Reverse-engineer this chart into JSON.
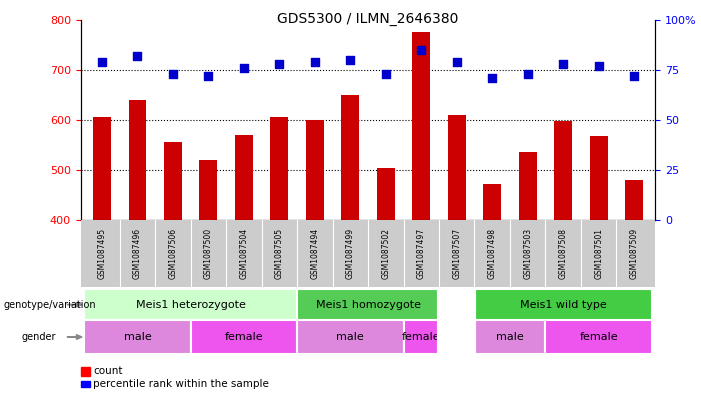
{
  "title": "GDS5300 / ILMN_2646380",
  "samples": [
    "GSM1087495",
    "GSM1087496",
    "GSM1087506",
    "GSM1087500",
    "GSM1087504",
    "GSM1087505",
    "GSM1087494",
    "GSM1087499",
    "GSM1087502",
    "GSM1087497",
    "GSM1087507",
    "GSM1087498",
    "GSM1087503",
    "GSM1087508",
    "GSM1087501",
    "GSM1087509"
  ],
  "counts": [
    605,
    640,
    555,
    520,
    570,
    605,
    600,
    650,
    503,
    775,
    610,
    472,
    535,
    597,
    568,
    480
  ],
  "percentiles": [
    79,
    82,
    73,
    72,
    76,
    78,
    79,
    80,
    73,
    85,
    79,
    71,
    73,
    78,
    77,
    72
  ],
  "ylim_left": [
    400,
    800
  ],
  "ylim_right": [
    0,
    100
  ],
  "yticks_left": [
    400,
    500,
    600,
    700,
    800
  ],
  "yticks_right": [
    0,
    25,
    50,
    75,
    100
  ],
  "bar_color": "#cc0000",
  "dot_color": "#0000cc",
  "sample_bg_color": "#cccccc",
  "genotype_groups": [
    {
      "label": "Meis1 heterozygote",
      "start": 0,
      "end": 5,
      "color": "#ccffcc"
    },
    {
      "label": "Meis1 homozygote",
      "start": 6,
      "end": 9,
      "color": "#55cc55"
    },
    {
      "label": "Meis1 wild type",
      "start": 11,
      "end": 15,
      "color": "#44cc44"
    }
  ],
  "gender_groups": [
    {
      "label": "male",
      "start": 0,
      "end": 2,
      "color": "#dd88dd"
    },
    {
      "label": "female",
      "start": 3,
      "end": 5,
      "color": "#ee55ee"
    },
    {
      "label": "male",
      "start": 6,
      "end": 8,
      "color": "#dd88dd"
    },
    {
      "label": "female",
      "start": 9,
      "end": 9,
      "color": "#ee55ee"
    },
    {
      "label": "male",
      "start": 11,
      "end": 12,
      "color": "#dd88dd"
    },
    {
      "label": "female",
      "start": 13,
      "end": 15,
      "color": "#ee55ee"
    }
  ],
  "legend_count_label": "count",
  "legend_percentile_label": "percentile rank within the sample",
  "genotype_label": "genotype/variation",
  "gender_label": "gender",
  "bar_width": 0.5,
  "dot_size": 40,
  "n_samples": 16,
  "gap_positions": [
    10
  ]
}
